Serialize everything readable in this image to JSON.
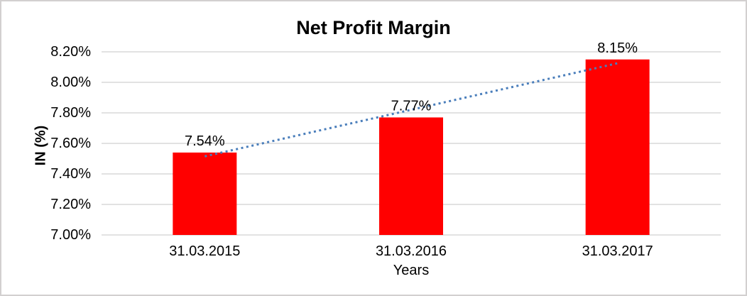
{
  "chart_data": {
    "type": "bar",
    "title": "Net Profit Margin",
    "xlabel": "Years",
    "ylabel": "IN (%)",
    "categories": [
      "31.03.2015",
      "31.03.2016",
      "31.03.2017"
    ],
    "values": [
      7.54,
      7.77,
      8.15
    ],
    "data_labels": [
      "7.54%",
      "7.77%",
      "8.15%"
    ],
    "ylim": [
      7.0,
      8.2
    ],
    "tick_values": [
      7.0,
      7.2,
      7.4,
      7.6,
      7.8,
      8.0,
      8.2
    ],
    "tick_labels": [
      "7.00%",
      "7.20%",
      "7.40%",
      "7.60%",
      "7.80%",
      "8.00%",
      "8.20%"
    ],
    "grid": true,
    "legend": "none",
    "bar_color": "#ff0000",
    "gridline_color": "#d9d9d9",
    "trendline": {
      "type": "linear",
      "style": "dotted",
      "color": "#4a7ebb"
    }
  }
}
